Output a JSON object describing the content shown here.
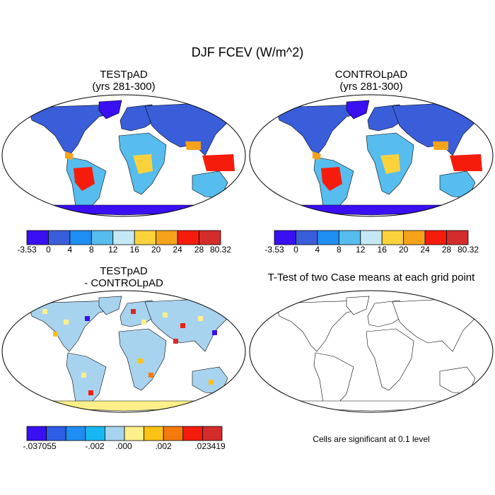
{
  "figure": {
    "title": "DJF FCEV (W/m^2)"
  },
  "panels": {
    "test": {
      "title_line1": "TESTpAD",
      "title_line2": "(yrs 281-300)"
    },
    "control": {
      "title_line1": "CONTROLpAD",
      "title_line2": "(yrs 281-300)"
    },
    "diff": {
      "title_line1": "TESTpAD",
      "title_line2": "- CONTROLpAD"
    },
    "ttest": {
      "title": "T-Test of two Case means at each grid point",
      "note": "Cells are significant at 0.1 level"
    }
  },
  "colorbars": {
    "mean": {
      "colors": [
        "#3a0ff2",
        "#3a5ed9",
        "#1f8ef2",
        "#56bdee",
        "#c5e8f5",
        "#fbd23c",
        "#f5a31a",
        "#f51c0c",
        "#d42c2c"
      ],
      "labels": [
        "-3.53",
        "0",
        "4",
        "8",
        "12",
        "16",
        "20",
        "24",
        "28",
        "80.32"
      ]
    },
    "diff": {
      "colors": [
        "#3a0ff2",
        "#2f5ee6",
        "#1f8ef2",
        "#17b8f2",
        "#a8d3ef",
        "#fdf08a",
        "#fcc216",
        "#f57a0c",
        "#f51c0c",
        "#d42c2c"
      ],
      "labels": [
        "-.037055",
        "-.002",
        ".000",
        ".002",
        ".023419"
      ]
    }
  }
}
